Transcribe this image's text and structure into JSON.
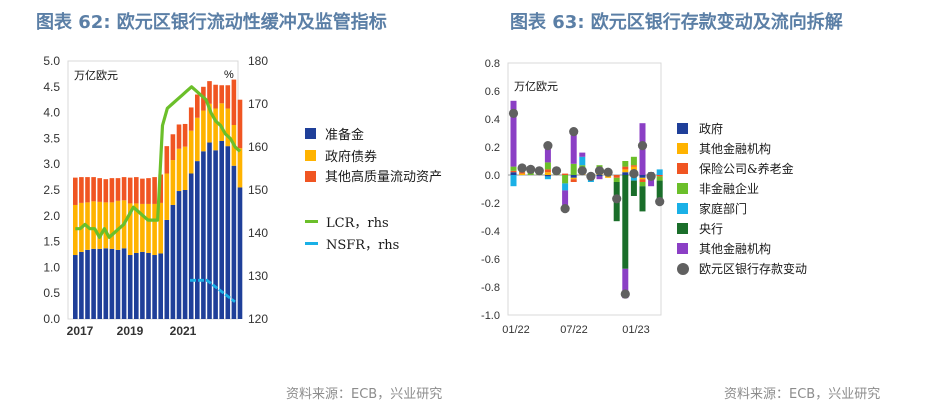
{
  "left": {
    "title": "图表 62: 欧元区银行流动性缓冲及监管指标",
    "source": "资料来源：ECB，兴业研究",
    "unit_left": "万亿欧元",
    "unit_right": "%",
    "legend": [
      "准备金",
      "政府债券",
      "其他高质量流动资产",
      "LCR，rhs",
      "NSFR，rhs"
    ]
  },
  "right": {
    "title": "图表 63: 欧元区银行存款变动及流向拆解",
    "source": "资料来源：ECB，兴业研究",
    "unit": "万亿欧元",
    "legend": [
      "政府",
      "其他金融机构",
      "保险公司&养老金",
      "非金融企业",
      "家庭部门",
      "央行",
      "其他金融机构",
      "欧元区银行存款变动"
    ]
  },
  "chart_data": [
    {
      "type": "bar",
      "title": "图表 62: 欧元区银行流动性缓冲及监管指标",
      "unit_left": "万亿欧元",
      "unit_right": "%",
      "stacked": true,
      "x_ticks": [
        "2017",
        "2019",
        "2021"
      ],
      "ylim": [
        0,
        5
      ],
      "y_ticks": [
        "0.0",
        "0.5",
        "1.0",
        "1.5",
        "2.0",
        "2.5",
        "3.0",
        "3.5",
        "4.0",
        "4.5",
        "5.0"
      ],
      "ylim_right": [
        120,
        180
      ],
      "y_right_ticks": [
        "120",
        "130",
        "140",
        "150",
        "160",
        "170",
        "180"
      ],
      "legend_position": "right",
      "colors": {
        "reserves": "#1f3f99",
        "govt_bonds": "#ffb300",
        "other_hqla": "#f05522",
        "lcr": "#6bbf2a",
        "nsfr": "#1ab0e6"
      },
      "series": [
        {
          "name": "准备金",
          "color": "#1f3f99",
          "values": [
            1.24,
            1.3,
            1.34,
            1.36,
            1.36,
            1.37,
            1.36,
            1.34,
            1.37,
            1.24,
            1.28,
            1.3,
            1.28,
            1.24,
            1.27,
            1.92,
            2.21,
            2.48,
            2.5,
            2.82,
            3.06,
            3.25,
            3.42,
            3.27,
            3.45,
            3.35,
            2.97,
            2.55
          ]
        },
        {
          "name": "政府债券",
          "color": "#ffb300",
          "values": [
            0.97,
            0.95,
            0.92,
            0.92,
            0.91,
            0.89,
            0.9,
            0.95,
            0.93,
            1.0,
            0.96,
            0.93,
            0.95,
            0.99,
            0.98,
            0.9,
            0.87,
            0.82,
            0.84,
            0.83,
            0.84,
            0.79,
            0.75,
            0.81,
            0.73,
            0.73,
            0.79,
            0.76
          ]
        },
        {
          "name": "其他高质量流动资产",
          "color": "#f05522",
          "values": [
            0.53,
            0.5,
            0.49,
            0.47,
            0.46,
            0.45,
            0.47,
            0.44,
            0.45,
            0.5,
            0.51,
            0.49,
            0.5,
            0.52,
            0.55,
            0.53,
            0.5,
            0.47,
            0.44,
            0.45,
            0.45,
            0.46,
            0.44,
            0.46,
            0.35,
            0.45,
            0.88,
            0.94
          ]
        },
        {
          "name": "LCR，rhs",
          "color": "#6bbf2a",
          "axis": "right",
          "values": [
            141,
            141,
            142,
            141,
            141,
            139,
            141,
            139,
            140,
            141,
            142,
            144,
            146,
            145,
            144,
            143,
            143,
            143,
            165,
            169,
            170,
            171,
            172,
            173,
            174,
            173,
            172,
            171,
            168,
            166,
            165,
            163,
            162,
            160,
            159
          ]
        },
        {
          "name": "NSFR，rhs",
          "color": "#1ab0e6",
          "axis": "right",
          "values": [
            129,
            129,
            129,
            129,
            128,
            127,
            126,
            125,
            124
          ]
        }
      ]
    },
    {
      "type": "bar",
      "title": "图表 63: 欧元区银行存款变动及流向拆解",
      "unit": "万亿欧元",
      "stacked": true,
      "x_ticks": [
        "01/22",
        "07/22",
        "01/23"
      ],
      "ylim": [
        -1.0,
        0.8
      ],
      "y_ticks": [
        "0.8",
        "0.6",
        "0.4",
        "0.2",
        "0.0",
        "-0.2",
        "-0.4",
        "-0.6",
        "-0.8",
        "-1.0"
      ],
      "legend_position": "right",
      "series": [
        {
          "name": "政府",
          "color": "#1f3f99",
          "values": [
            0.02,
            0,
            0,
            0,
            -0.01,
            0,
            0,
            -0.02,
            0,
            0,
            -0.01,
            0,
            0,
            0.02,
            0,
            -0.02,
            0.02,
            0
          ]
        },
        {
          "name": "其他金融机构",
          "color": "#ffb300",
          "values": [
            0,
            0.01,
            0,
            0,
            0.02,
            0,
            0,
            -0.01,
            0.03,
            0,
            0.01,
            -0.02,
            0,
            0.02,
            0.06,
            -0.01,
            -0.01,
            0
          ]
        },
        {
          "name": "保险公司&养老金",
          "color": "#f05522",
          "values": [
            0.01,
            0.01,
            0,
            0,
            0.02,
            0,
            0.01,
            -0.02,
            0.02,
            0,
            0.02,
            0,
            -0.02,
            0.02,
            0.01,
            -0.02,
            0,
            -0.01
          ]
        },
        {
          "name": "非金融企业",
          "color": "#6bbf2a",
          "values": [
            0.03,
            0.02,
            0.02,
            0.01,
            0.05,
            0.02,
            -0.06,
            0.08,
            0.02,
            -0.03,
            0.04,
            0.02,
            -0.03,
            0.04,
            0.06,
            -0.03,
            -0.02,
            -0.03
          ]
        },
        {
          "name": "家庭部门",
          "color": "#1ab0e6",
          "values": [
            -0.08,
            0,
            0,
            0,
            -0.02,
            0,
            -0.05,
            0,
            0.06,
            -0.02,
            0,
            0,
            0,
            0,
            -0.04,
            0,
            0,
            0.04
          ]
        },
        {
          "name": "央行",
          "color": "#1a6e2a",
          "values": [
            0,
            0,
            0,
            0,
            0,
            0,
            0,
            0,
            0,
            0,
            0,
            0,
            -0.28,
            -0.67,
            -0.11,
            -0.18,
            0,
            -0.14
          ]
        },
        {
          "name": "其他金融机构",
          "color": "#8b3fc5",
          "values": [
            0.47,
            0,
            0,
            0,
            0.12,
            0,
            -0.15,
            0.24,
            0.03,
            0,
            -0.02,
            0,
            0,
            -0.21,
            0,
            0.37,
            -0.05,
            0
          ]
        },
        {
          "name": "欧元区银行存款变动",
          "color": "#606060",
          "type": "scatter",
          "values": [
            0.44,
            0.05,
            0.04,
            0.03,
            0.21,
            0.03,
            -0.24,
            0.31,
            0.03,
            -0.01,
            0.03,
            0.02,
            -0.17,
            -0.85,
            0.01,
            0.21,
            -0.01,
            -0.19
          ]
        }
      ]
    }
  ]
}
